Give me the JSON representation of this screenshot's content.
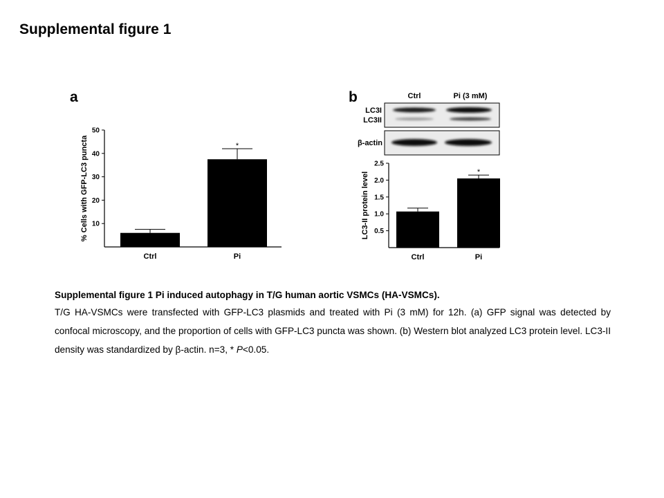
{
  "page": {
    "title": "Supplemental figure 1"
  },
  "panels": {
    "a": {
      "letter": "a",
      "ylabel": "% Cells with GFP-LC3  puncta",
      "yticks": [
        "10",
        "20",
        "30",
        "40",
        "50"
      ],
      "categories": [
        "Ctrl",
        "Pi"
      ],
      "significance": "*"
    },
    "b": {
      "letter": "b",
      "blot": {
        "column_labels": [
          "Ctrl",
          "Pi (3 mM)"
        ],
        "row_labels": [
          "LC3I",
          "LC3II",
          "β-actin"
        ]
      },
      "ylabel": "LC3-II protein level",
      "yticks": [
        "0.5",
        "1.0",
        "1.5",
        "2.0",
        "2.5"
      ],
      "categories": [
        "Ctrl",
        "Pi"
      ],
      "significance": "*"
    }
  },
  "chart_data": [
    {
      "type": "bar",
      "panel": "a",
      "categories": [
        "Ctrl",
        "Pi"
      ],
      "values": [
        6,
        37.5
      ],
      "errors": [
        1.5,
        4.5
      ],
      "ylim": [
        0,
        50
      ],
      "yticks": [
        10,
        20,
        30,
        40,
        50
      ],
      "ylabel": "% Cells with GFP-LC3  puncta",
      "annotations": [
        "*"
      ]
    },
    {
      "type": "bar",
      "panel": "b",
      "categories": [
        "Ctrl",
        "Pi"
      ],
      "values": [
        1.07,
        2.05
      ],
      "errors": [
        0.1,
        0.1
      ],
      "ylim": [
        0,
        2.5
      ],
      "yticks": [
        0.5,
        1.0,
        1.5,
        2.0,
        2.5
      ],
      "ylabel": "LC3-II protein level",
      "annotations": [
        "*"
      ]
    }
  ],
  "caption": {
    "title": "Supplemental figure 1 Pi induced autophagy in T/G human aortic VSMCs (HA-VSMCs).",
    "body_before_italic": "T/G HA-VSMCs were transfected with GFP-LC3 plasmids and treated with Pi (3 mM) for 12h. (a) GFP signal was detected by confocal microscopy, and the proportion of cells with GFP-LC3 puncta was shown. (b) Western blot analyzed LC3 protein level. LC3-II density was standardized by β-actin. n=3, * ",
    "italic": "P",
    "body_after_italic": "<0.05."
  }
}
